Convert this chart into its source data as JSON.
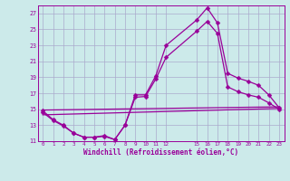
{
  "xlabel": "Windchill (Refroidissement éolien,°C)",
  "background_color": "#cceaea",
  "grid_color": "#aaaacc",
  "line_color": "#990099",
  "xlim": [
    -0.5,
    23.5
  ],
  "ylim": [
    11,
    28
  ],
  "yticks": [
    11,
    13,
    15,
    17,
    19,
    21,
    23,
    25,
    27
  ],
  "xtick_vals": [
    0,
    1,
    2,
    3,
    4,
    5,
    6,
    7,
    8,
    9,
    10,
    11,
    12,
    15,
    16,
    17,
    18,
    19,
    20,
    21,
    22,
    23
  ],
  "xtick_labels": [
    "0",
    "1",
    "2",
    "3",
    "4",
    "5",
    "6",
    "7",
    "8",
    "9",
    "10",
    "11",
    "12",
    "15",
    "16",
    "17",
    "18",
    "19",
    "20",
    "21",
    "22",
    "23"
  ],
  "series": [
    {
      "x": [
        0,
        1,
        2,
        3,
        4,
        5,
        6,
        7,
        8,
        9,
        10,
        11,
        12,
        15,
        16,
        17,
        18,
        19,
        20,
        21,
        22,
        23
      ],
      "y": [
        14.8,
        13.7,
        13.0,
        12.0,
        11.5,
        11.5,
        11.7,
        11.2,
        13.0,
        16.8,
        16.8,
        19.2,
        23.0,
        26.2,
        27.7,
        25.8,
        19.5,
        18.9,
        18.5,
        18.0,
        16.8,
        15.2
      ],
      "marker": "D",
      "markersize": 2.5,
      "linewidth": 0.9
    },
    {
      "x": [
        0,
        1,
        2,
        3,
        4,
        5,
        6,
        7,
        8,
        9,
        10,
        11,
        12,
        15,
        16,
        17,
        18,
        19,
        20,
        21,
        22,
        23
      ],
      "y": [
        14.6,
        13.6,
        12.9,
        12.0,
        11.5,
        11.5,
        11.6,
        11.2,
        13.0,
        16.5,
        16.6,
        18.8,
        21.5,
        24.8,
        26.0,
        24.5,
        17.8,
        17.2,
        16.8,
        16.5,
        15.8,
        15.0
      ],
      "marker": "D",
      "markersize": 2.5,
      "linewidth": 0.9
    },
    {
      "x": [
        0,
        23
      ],
      "y": [
        14.9,
        15.3
      ],
      "marker": null,
      "markersize": 0,
      "linewidth": 0.9
    },
    {
      "x": [
        0,
        23
      ],
      "y": [
        14.3,
        15.1
      ],
      "marker": null,
      "markersize": 0,
      "linewidth": 0.9
    }
  ]
}
